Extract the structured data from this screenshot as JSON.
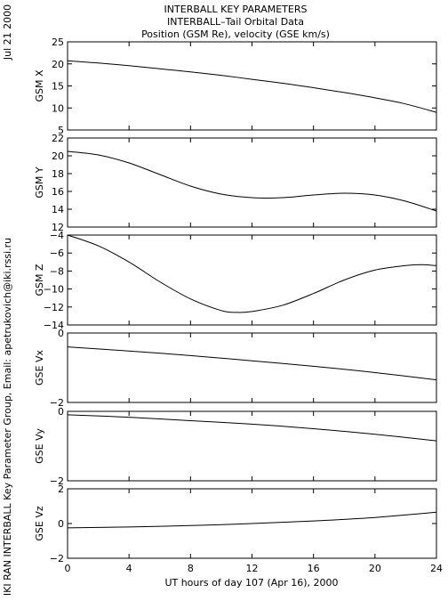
{
  "header": {
    "title1": "INTERBALL KEY PARAMETERS",
    "title2": "INTERBALL–Tail Orbital Data",
    "title3": "Position (GSM Re), velocity (GSE km/s)"
  },
  "side": {
    "date": "Jul 21 2000",
    "credit": "IKI RAN INTERBALL Key Parameter Group, Email: apetrukovich@iki.rssi.ru"
  },
  "chart_data": {
    "type": "line",
    "xlabel": "UT hours of day 107 (Apr 16), 2000",
    "xlim": [
      0,
      24
    ],
    "xticks": [
      0,
      4,
      8,
      12,
      16,
      20,
      24
    ],
    "panels": [
      {
        "ylabel": "GSM X",
        "ylim": [
          5,
          25
        ],
        "yticks": [
          5,
          10,
          15,
          20,
          25
        ],
        "x": [
          0,
          2,
          4,
          6,
          8,
          10,
          12,
          14,
          16,
          18,
          20,
          22,
          24
        ],
        "y": [
          20.7,
          20.2,
          19.6,
          18.9,
          18.2,
          17.4,
          16.5,
          15.6,
          14.6,
          13.5,
          12.3,
          10.9,
          9.0
        ]
      },
      {
        "ylabel": "GSM Y",
        "ylim": [
          12,
          22
        ],
        "yticks": [
          12,
          14,
          16,
          18,
          20,
          22
        ],
        "x": [
          0,
          2,
          4,
          6,
          8,
          10,
          12,
          14,
          16,
          18,
          20,
          22,
          24
        ],
        "y": [
          20.5,
          20.1,
          19.2,
          17.9,
          16.6,
          15.7,
          15.3,
          15.3,
          15.6,
          15.8,
          15.6,
          14.9,
          13.8
        ]
      },
      {
        "ylabel": "GSM Z",
        "ylim": [
          -14,
          -4
        ],
        "yticks": [
          -14,
          -12,
          -10,
          -8,
          -6,
          -4
        ],
        "x": [
          0,
          2,
          4,
          6,
          8,
          10,
          11,
          12,
          14,
          16,
          18,
          20,
          22,
          23,
          24
        ],
        "y": [
          -4.0,
          -5.2,
          -7.0,
          -9.2,
          -11.1,
          -12.4,
          -12.6,
          -12.5,
          -11.8,
          -10.5,
          -9.0,
          -7.9,
          -7.4,
          -7.3,
          -7.4
        ]
      },
      {
        "ylabel": "GSE Vx",
        "ylim": [
          -2,
          0
        ],
        "yticks": [
          -2,
          0
        ],
        "x": [
          0,
          4,
          8,
          12,
          16,
          20,
          24
        ],
        "y": [
          -0.4,
          -0.52,
          -0.65,
          -0.8,
          -0.96,
          -1.14,
          -1.35
        ]
      },
      {
        "ylabel": "GSE Vy",
        "ylim": [
          -2,
          0
        ],
        "yticks": [
          -2,
          0
        ],
        "x": [
          0,
          4,
          8,
          12,
          16,
          20,
          24
        ],
        "y": [
          -0.1,
          -0.17,
          -0.27,
          -0.37,
          -0.5,
          -0.66,
          -0.85
        ]
      },
      {
        "ylabel": "GSE Vz",
        "ylim": [
          -2,
          2
        ],
        "yticks": [
          -2,
          0,
          2
        ],
        "x": [
          0,
          4,
          8,
          12,
          16,
          20,
          24
        ],
        "y": [
          -0.25,
          -0.2,
          -0.12,
          0.0,
          0.15,
          0.35,
          0.65
        ]
      }
    ]
  }
}
